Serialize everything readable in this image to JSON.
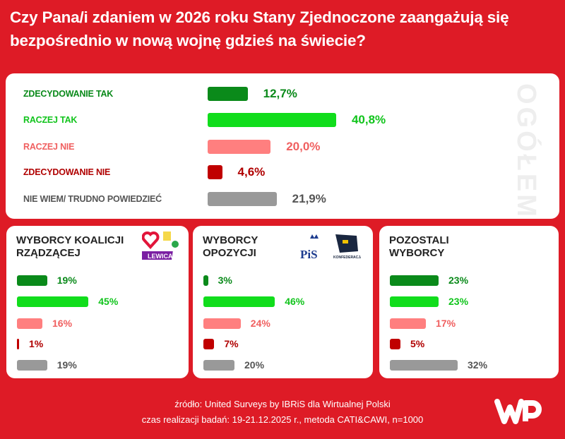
{
  "title": "Czy Pana/i zdaniem w 2026 roku Stany Zjednoczone zaangażują się bezpośrednio w nową wojnę gdzieś na świecie?",
  "chart_data": [
    {
      "type": "bar",
      "title": "OGÓŁEM",
      "categories": [
        "ZDECYDOWANIE TAK",
        "RACZEJ TAK",
        "RACZEJ NIE",
        "ZDECYDOWANIE NIE",
        "NIE WIEM/ TRUDNO POWIEDZIEĆ"
      ],
      "values": [
        12.7,
        40.8,
        20.0,
        4.6,
        21.9
      ],
      "labels": [
        "12,7%",
        "40,8%",
        "20,0%",
        "4,6%",
        "21,9%"
      ],
      "colors": [
        "#0a8a1a",
        "#11dd1c",
        "#ff7f7f",
        "#c00000",
        "#999999"
      ]
    },
    {
      "type": "bar",
      "title": "WYBORCY KOALICJI RZĄDZĄCEJ",
      "values": [
        19,
        45,
        16,
        1,
        19
      ],
      "labels": [
        "19%",
        "45%",
        "16%",
        "1%",
        "19%"
      ]
    },
    {
      "type": "bar",
      "title": "WYBORCY OPOZYCJI",
      "values": [
        3,
        46,
        24,
        7,
        20
      ],
      "labels": [
        "3%",
        "46%",
        "24%",
        "7%",
        "20%"
      ]
    },
    {
      "type": "bar",
      "title": "POZOSTALI WYBORCY",
      "values": [
        23,
        23,
        17,
        5,
        32
      ],
      "labels": [
        "23%",
        "23%",
        "17%",
        "5%",
        "32%"
      ]
    }
  ],
  "logos": {
    "lewica": "LEWICA",
    "pis": "PiS",
    "konfederacja": "KONFEDERACJA"
  },
  "footer": {
    "source": "źródło: United Surveys by IBRiS dla Wirtualnej Polski",
    "method": "czas realizacji badań: 19-21.12.2025 r., metoda CATI&CAWI, n=1000"
  },
  "brand": "WP"
}
